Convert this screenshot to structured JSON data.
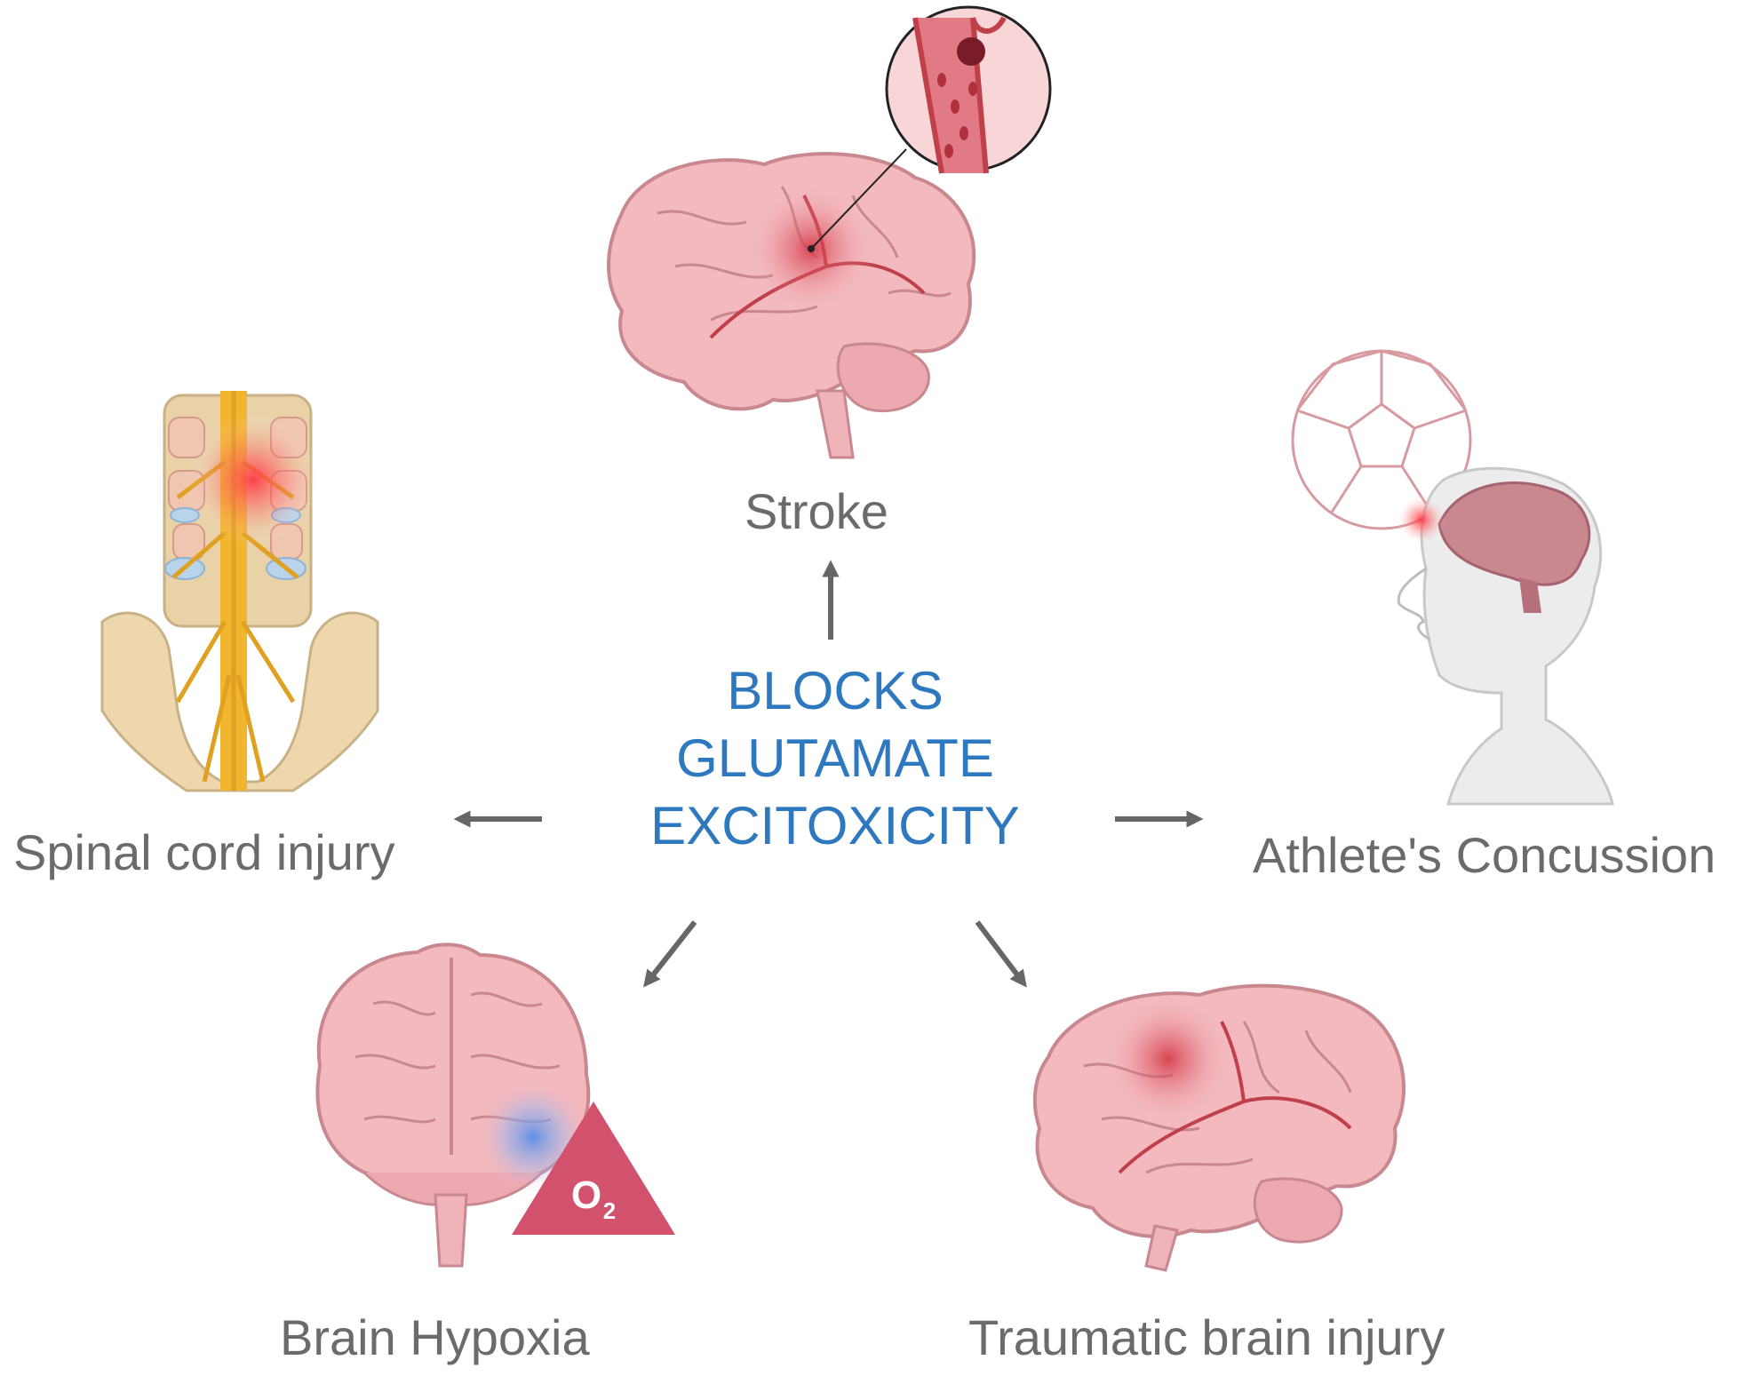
{
  "center": {
    "line1": "BLOCKS",
    "line2": "GLUTAMATE",
    "line3": "EXCITOXICITY",
    "color": "#2e78bf"
  },
  "labels": {
    "stroke": "Stroke",
    "spinal": "Spinal cord injury",
    "concussion": "Athlete's Concussion",
    "hypoxia": "Brain Hypoxia",
    "tbi": "Traumatic brain injury"
  },
  "hypoxia_badge": {
    "symbol": "O",
    "subscript": "2"
  },
  "colors": {
    "label_text": "#6b6b6b",
    "arrow": "#666666",
    "brain_fill": "#f3b9bf",
    "brain_stroke": "#c98790",
    "injury_red": "#d33040",
    "hypoxia_blue": "#5b8ee6",
    "o2_triangle": "#d2526e"
  },
  "icons": [
    "stroke-brain-icon",
    "blood-clot-icon",
    "spinal-cord-icon",
    "concussion-head-icon",
    "soccer-ball-icon",
    "hypoxia-brain-icon",
    "o2-triangle-icon",
    "tbi-brain-icon"
  ]
}
